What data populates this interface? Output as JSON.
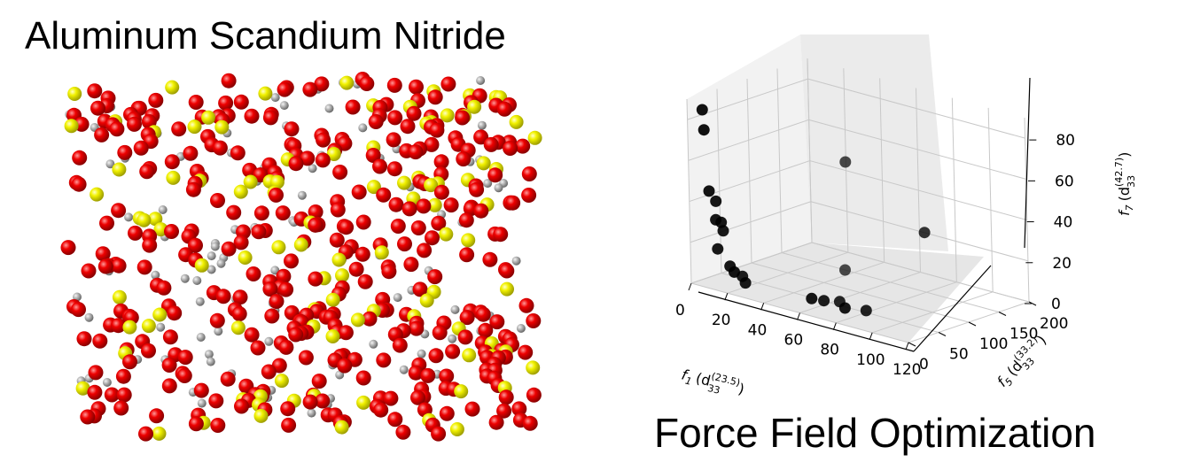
{
  "title_left": "Aluminum Scandium Nitride",
  "title_right": "Force Field Optimization",
  "crystal": {
    "atoms": [
      {
        "element": "N",
        "color": "#e00000"
      },
      {
        "element": "Sc",
        "color": "#f0f000"
      },
      {
        "element": "Al",
        "color": "#a8a8a8"
      }
    ]
  },
  "chart_data": {
    "type": "scatter",
    "projection": "3d",
    "x_axis": {
      "label_main": "f",
      "label_sub": "1",
      "label_paren": "(d",
      "label_d_sub": "33",
      "label_d_sup": "(23.5)",
      "label_close": ")",
      "ticks": [
        "0",
        "20",
        "40",
        "60",
        "80",
        "100",
        "120"
      ],
      "range": [
        0,
        120
      ]
    },
    "y_axis": {
      "label_main": "f",
      "label_sub": "5",
      "label_paren": "(d",
      "label_d_sub": "33",
      "label_d_sup": "(33.2)",
      "label_close": ")",
      "ticks": [
        "0",
        "50",
        "100",
        "150",
        "200"
      ],
      "range": [
        0,
        200
      ]
    },
    "z_axis": {
      "label_main": "f",
      "label_sub": "7",
      "label_paren": "(d",
      "label_d_sub": "33",
      "label_d_sup": "(42.7)",
      "label_close": ")",
      "ticks": [
        "0",
        "20",
        "40",
        "60",
        "80"
      ],
      "range": [
        0,
        90
      ]
    },
    "grid": true,
    "marker_color": "#000000",
    "points": [
      {
        "x": 5,
        "y": 10,
        "z": 85
      },
      {
        "x": 5,
        "y": 12,
        "z": 75
      },
      {
        "x": 6,
        "y": 15,
        "z": 45
      },
      {
        "x": 8,
        "y": 20,
        "z": 40
      },
      {
        "x": 6,
        "y": 25,
        "z": 30
      },
      {
        "x": 10,
        "y": 22,
        "z": 30
      },
      {
        "x": 9,
        "y": 28,
        "z": 25
      },
      {
        "x": 5,
        "y": 30,
        "z": 15
      },
      {
        "x": 15,
        "y": 20,
        "z": 10
      },
      {
        "x": 18,
        "y": 18,
        "z": 8
      },
      {
        "x": 20,
        "y": 30,
        "z": 2
      },
      {
        "x": 15,
        "y": 40,
        "z": 3
      },
      {
        "x": 60,
        "y": 20,
        "z": 5
      },
      {
        "x": 75,
        "y": 30,
        "z": 3
      },
      {
        "x": 60,
        "y": 40,
        "z": 2
      },
      {
        "x": 62,
        "y": 60,
        "z": 0
      },
      {
        "x": 80,
        "y": 50,
        "z": 1
      },
      {
        "x": 35,
        "y": 150,
        "z": 0
      },
      {
        "x": 40,
        "y": 140,
        "z": 55
      },
      {
        "x": 100,
        "y": 90,
        "z": 40
      }
    ]
  }
}
